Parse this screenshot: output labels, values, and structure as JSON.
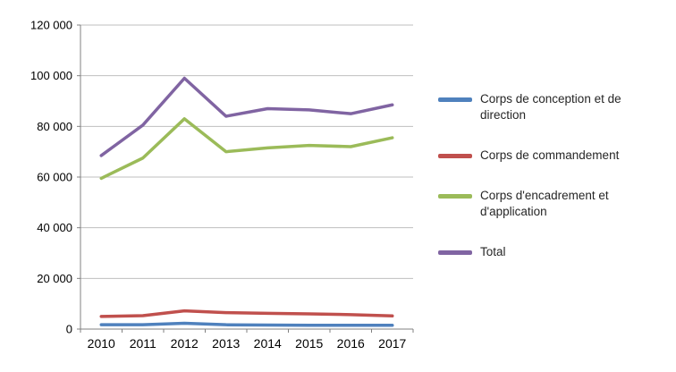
{
  "chart_data": {
    "type": "line",
    "title": "",
    "xlabel": "",
    "ylabel": "",
    "categories": [
      "2010",
      "2011",
      "2012",
      "2013",
      "2014",
      "2015",
      "2016",
      "2017"
    ],
    "series": [
      {
        "name": "Corps de conception et de direction",
        "color": "#4F81BD",
        "values": [
          1700,
          1700,
          2300,
          1700,
          1600,
          1500,
          1500,
          1500
        ]
      },
      {
        "name": "Corps de commandement",
        "color": "#C0504D",
        "values": [
          5000,
          5300,
          7200,
          6500,
          6200,
          6000,
          5700,
          5200
        ]
      },
      {
        "name": "Corps d'encadrement et d'application",
        "color": "#9BBB59",
        "values": [
          59500,
          67500,
          83000,
          70000,
          71500,
          72500,
          72000,
          75500
        ]
      },
      {
        "name": "Total",
        "color": "#8064A2",
        "values": [
          68500,
          80500,
          99000,
          84000,
          87000,
          86500,
          85000,
          88500
        ]
      }
    ],
    "ylim": [
      0,
      120000
    ],
    "ytick_step": 20000,
    "ytick_labels": [
      "0",
      "20 000",
      "40 000",
      "60 000",
      "80 000",
      "100 000",
      "120 000"
    ],
    "grid": true,
    "legend_position": "right",
    "colors": {
      "gridline": "#BFBFBF",
      "axis": "#808080",
      "background": "#FFFFFF"
    }
  }
}
